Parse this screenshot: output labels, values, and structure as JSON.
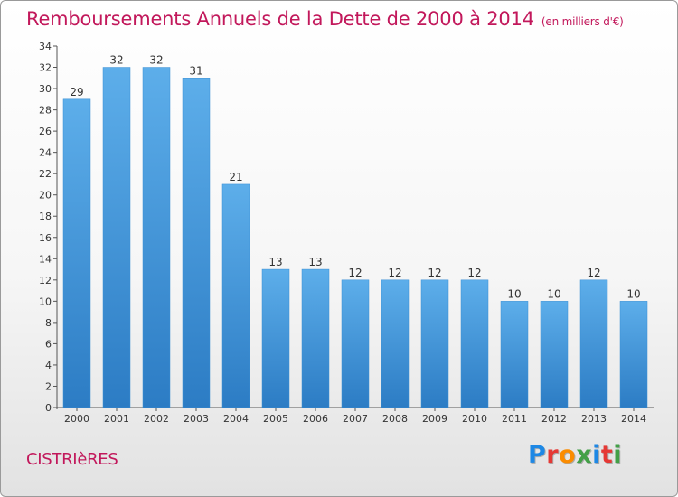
{
  "header": {
    "title": "Remboursements Annuels de la Dette de 2000 à 2014",
    "unit": "(en milliers d'€)"
  },
  "footer": {
    "commune": "CISTRIèRES",
    "brand": [
      "P",
      "r",
      "o",
      "x",
      "i",
      "t",
      "i"
    ],
    "brand_colors": [
      "#1e88e5",
      "#e53935",
      "#fb8c00",
      "#43a047",
      "#1e88e5",
      "#e53935",
      "#43a047"
    ]
  },
  "chart_data": {
    "type": "bar",
    "title": "Remboursements Annuels de la Dette de 2000 à 2014",
    "unit": "(en milliers d'€)",
    "categories": [
      "2000",
      "2001",
      "2002",
      "2003",
      "2004",
      "2005",
      "2006",
      "2007",
      "2008",
      "2009",
      "2010",
      "2011",
      "2012",
      "2013",
      "2014"
    ],
    "values": [
      29,
      32,
      32,
      31,
      21,
      13,
      13,
      12,
      12,
      12,
      12,
      10,
      10,
      12,
      10
    ],
    "ylim": [
      0,
      34
    ],
    "yticks": [
      0,
      2,
      4,
      6,
      8,
      10,
      12,
      14,
      16,
      18,
      20,
      22,
      24,
      26,
      28,
      30,
      32,
      34
    ],
    "grid": false,
    "bar_color": "#4a9fe0"
  }
}
